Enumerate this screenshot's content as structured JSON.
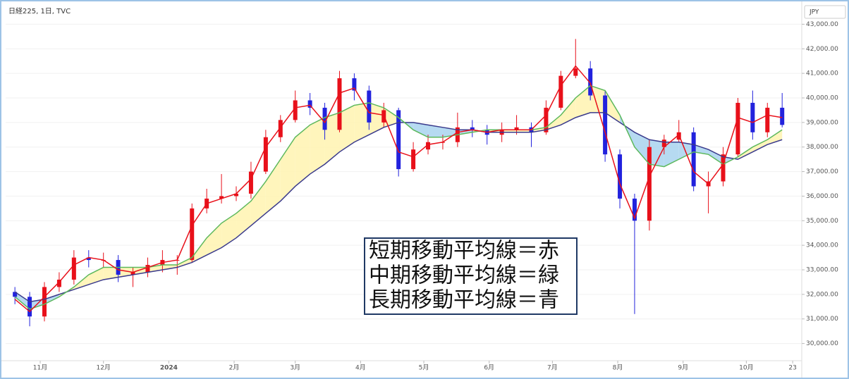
{
  "chart_data": {
    "type": "candlestick",
    "title": "日経225, 1日, TVC",
    "currency": "JPY",
    "x": [
      0,
      7,
      14,
      21,
      28,
      35,
      42,
      49,
      56,
      63,
      70,
      77,
      84,
      91,
      98,
      105,
      112,
      119,
      126,
      133,
      140,
      147,
      154,
      161,
      168,
      175,
      182,
      189,
      196,
      203,
      210,
      217,
      224,
      231,
      238,
      245,
      252,
      259,
      266,
      273,
      280,
      287,
      294,
      301,
      308,
      315,
      322,
      329,
      336,
      343,
      350,
      357,
      364
    ],
    "open": [
      32100,
      31900,
      31100,
      32300,
      32600,
      33500,
      33400,
      33400,
      32800,
      32900,
      33200,
      33400,
      33400,
      35500,
      35900,
      36000,
      36100,
      37000,
      38400,
      39100,
      39900,
      39600,
      38700,
      40800,
      40300,
      39000,
      39500,
      37100,
      37900,
      38200,
      38200,
      38800,
      38700,
      38500,
      38700,
      38800,
      38600,
      39600,
      40900,
      41200,
      40100,
      37700,
      35900,
      35000,
      38000,
      38300,
      38600,
      36400,
      36600,
      37700,
      39800,
      38600,
      39600
    ],
    "high": [
      32300,
      32100,
      32500,
      32900,
      33800,
      33800,
      33700,
      33600,
      33100,
      33500,
      33800,
      33600,
      35700,
      36300,
      36900,
      36400,
      37400,
      38700,
      39300,
      40300,
      40200,
      39800,
      41100,
      41000,
      40500,
      39800,
      39600,
      38200,
      38500,
      38500,
      39400,
      39100,
      38900,
      39000,
      39300,
      39000,
      39900,
      41100,
      42400,
      41500,
      40300,
      37900,
      36100,
      38300,
      38500,
      39100,
      38800,
      37000,
      38000,
      40000,
      40300,
      39800,
      40200
    ],
    "low": [
      31600,
      30700,
      30900,
      32100,
      32400,
      33100,
      33100,
      32500,
      32300,
      32700,
      32900,
      32800,
      33300,
      35300,
      35700,
      35800,
      35900,
      36900,
      38200,
      39000,
      39300,
      38300,
      38600,
      39900,
      38700,
      38800,
      36800,
      37000,
      37700,
      37900,
      38000,
      38400,
      38100,
      38200,
      38500,
      38000,
      38500,
      39500,
      40800,
      39900,
      37400,
      35500,
      31200,
      34600,
      37700,
      38200,
      36200,
      35300,
      36400,
      37600,
      38300,
      38400,
      38800
    ],
    "close": [
      31900,
      31100,
      32300,
      32600,
      33500,
      33400,
      33400,
      32800,
      32900,
      33200,
      33400,
      33400,
      35500,
      35900,
      36000,
      36100,
      37000,
      38400,
      39100,
      39900,
      39600,
      38700,
      40800,
      40300,
      39000,
      39500,
      37100,
      37900,
      38200,
      38200,
      38800,
      38700,
      38500,
      38700,
      38800,
      38600,
      39600,
      40900,
      41200,
      40100,
      37700,
      35900,
      35000,
      38000,
      38300,
      38600,
      36400,
      36600,
      37700,
      39800,
      38600,
      39600,
      38900
    ],
    "up_color": "#e8101a",
    "down_color": "#2222dd",
    "moving_averages": [
      {
        "color": "#e8101a",
        "values": [
          31800,
          31300,
          31900,
          32500,
          33200,
          33500,
          33400,
          33000,
          32900,
          33100,
          33300,
          33400,
          34800,
          35700,
          35900,
          36100,
          36700,
          38000,
          38800,
          39600,
          39700,
          39000,
          40200,
          40400,
          39400,
          39300,
          37800,
          37600,
          38100,
          38200,
          38600,
          38700,
          38600,
          38700,
          38700,
          38700,
          39300,
          40500,
          41300,
          40600,
          38600,
          36500,
          35100,
          36800,
          38000,
          38500,
          37000,
          36500,
          37300,
          39200,
          39000,
          39300,
          39200
        ]
      },
      {
        "color": "#5cb85c",
        "values": [
          31900,
          31400,
          31600,
          31900,
          32300,
          32800,
          33100,
          33100,
          33100,
          33100,
          33200,
          33200,
          33500,
          34300,
          34900,
          35300,
          35800,
          36600,
          37500,
          38400,
          38900,
          39200,
          39400,
          39700,
          39800,
          39600,
          39200,
          38700,
          38400,
          38400,
          38500,
          38600,
          38700,
          38700,
          38700,
          38700,
          38800,
          39300,
          40000,
          40500,
          40300,
          39300,
          38000,
          37300,
          37200,
          37500,
          37800,
          37700,
          37300,
          37600,
          38000,
          38300,
          38700
        ]
      },
      {
        "color": "#3a3a8c",
        "values": [
          32100,
          31700,
          31800,
          32000,
          32200,
          32400,
          32600,
          32700,
          32800,
          32900,
          33000,
          33100,
          33300,
          33600,
          33900,
          34300,
          34800,
          35300,
          35800,
          36400,
          36900,
          37300,
          37800,
          38200,
          38500,
          38800,
          39000,
          39000,
          38900,
          38800,
          38700,
          38700,
          38600,
          38600,
          38600,
          38600,
          38700,
          38900,
          39200,
          39400,
          39400,
          39000,
          38600,
          38300,
          38200,
          38200,
          38100,
          37900,
          37600,
          37500,
          37800,
          38100,
          38300
        ]
      }
    ],
    "band_colors": {
      "above": "#fff3b0",
      "below": "#a9d3ee"
    },
    "xlim": [
      -4.4,
      373.3
    ],
    "xticks": [
      {
        "value": 12,
        "label": "11月"
      },
      {
        "value": 42,
        "label": "12月"
      },
      {
        "value": 73,
        "label": "2024"
      },
      {
        "value": 104,
        "label": "2月"
      },
      {
        "value": 133,
        "label": "3月"
      },
      {
        "value": 164,
        "label": "4月"
      },
      {
        "value": 194,
        "label": "5月"
      },
      {
        "value": 225,
        "label": "6月"
      },
      {
        "value": 255,
        "label": "7月"
      },
      {
        "value": 286,
        "label": "8月"
      },
      {
        "value": 317,
        "label": "9月"
      },
      {
        "value": 347,
        "label": "10月"
      },
      {
        "value": 369,
        "label": "23"
      }
    ],
    "ylim": [
      29300,
      43700
    ],
    "yticks": [
      {
        "value": 30000,
        "label": "30,000.00"
      },
      {
        "value": 31000,
        "label": "31,000.00"
      },
      {
        "value": 32000,
        "label": "32,000.00"
      },
      {
        "value": 33000,
        "label": "33,000.00"
      },
      {
        "value": 34000,
        "label": "34,000.00"
      },
      {
        "value": 35000,
        "label": "35,000.00"
      },
      {
        "value": 36000,
        "label": "36,000.00"
      },
      {
        "value": 37000,
        "label": "37,000.00"
      },
      {
        "value": 38000,
        "label": "38,000.00"
      },
      {
        "value": 39000,
        "label": "39,000.00"
      },
      {
        "value": 40000,
        "label": "40,000.00"
      },
      {
        "value": 41000,
        "label": "41,000.00"
      },
      {
        "value": 42000,
        "label": "42,000.00"
      },
      {
        "value": 43000,
        "label": "43,000.00"
      }
    ],
    "annotations": [
      "短期移動平均線＝赤",
      "中期移動平均線＝緑",
      "長期移動平均線＝青"
    ]
  }
}
